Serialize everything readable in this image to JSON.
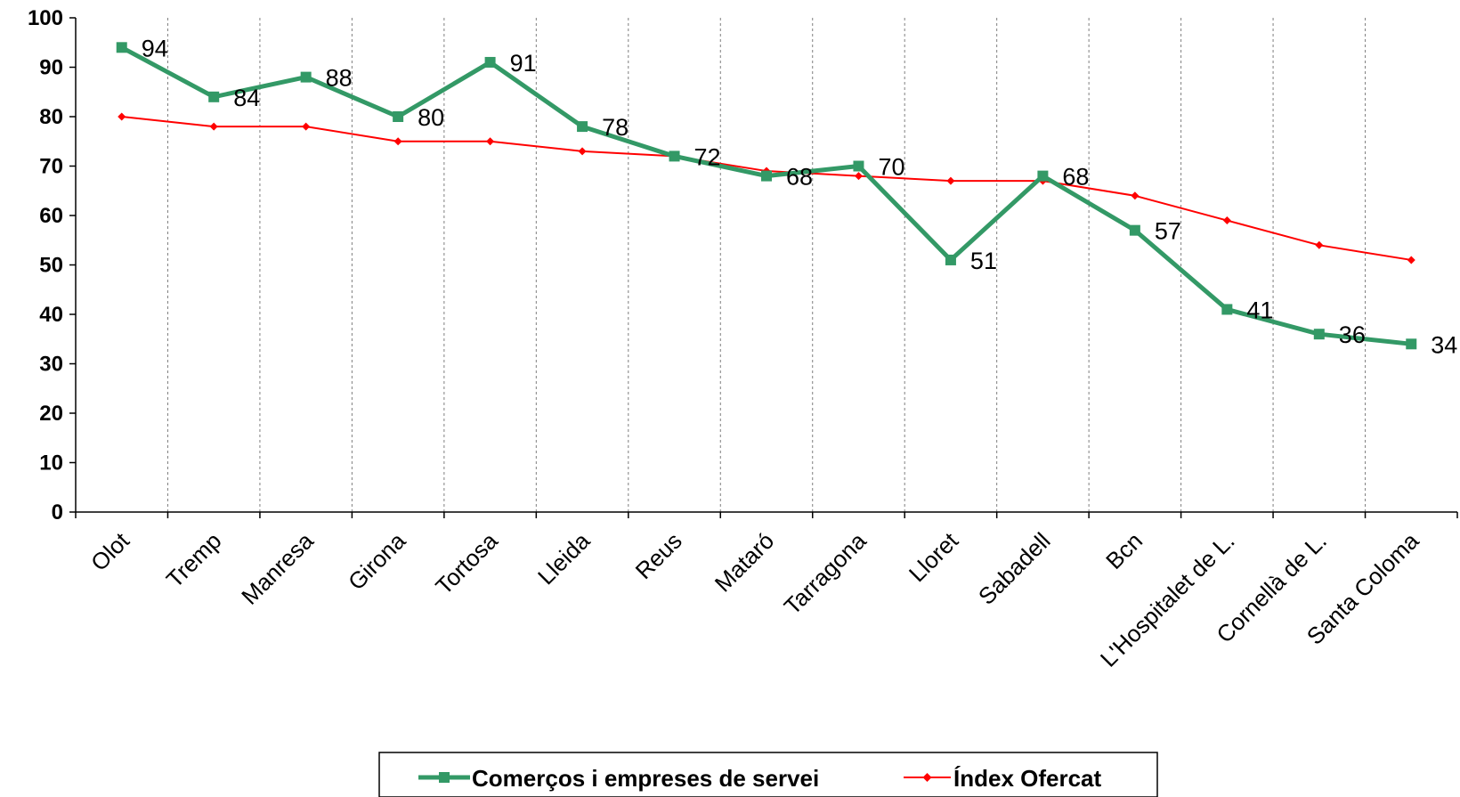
{
  "chart_data": {
    "type": "line",
    "categories": [
      "Olot",
      "Tremp",
      "Manresa",
      "Girona",
      "Tortosa",
      "Lleida",
      "Reus",
      "Mataró",
      "Tarragona",
      "Lloret",
      "Sabadell",
      "Bcn",
      "L'Hospitalet de L.",
      "Cornellà de L.",
      "Santa Coloma"
    ],
    "series": [
      {
        "name": "Comerços i empreses de servei",
        "color": "#339966",
        "marker": "square",
        "data_labels": true,
        "values": [
          94,
          84,
          88,
          80,
          91,
          78,
          72,
          68,
          70,
          51,
          68,
          57,
          41,
          36,
          34
        ]
      },
      {
        "name": "Índex Ofercat",
        "color": "#ff0000",
        "marker": "diamond",
        "data_labels": false,
        "values": [
          80,
          78,
          78,
          75,
          75,
          73,
          72,
          69,
          68,
          67,
          67,
          64,
          59,
          54,
          51
        ]
      }
    ],
    "ylim": [
      0,
      100
    ],
    "yticks": [
      0,
      10,
      20,
      30,
      40,
      50,
      60,
      70,
      80,
      90,
      100
    ],
    "grid": "vertical-dashed",
    "legend_position": "bottom"
  }
}
